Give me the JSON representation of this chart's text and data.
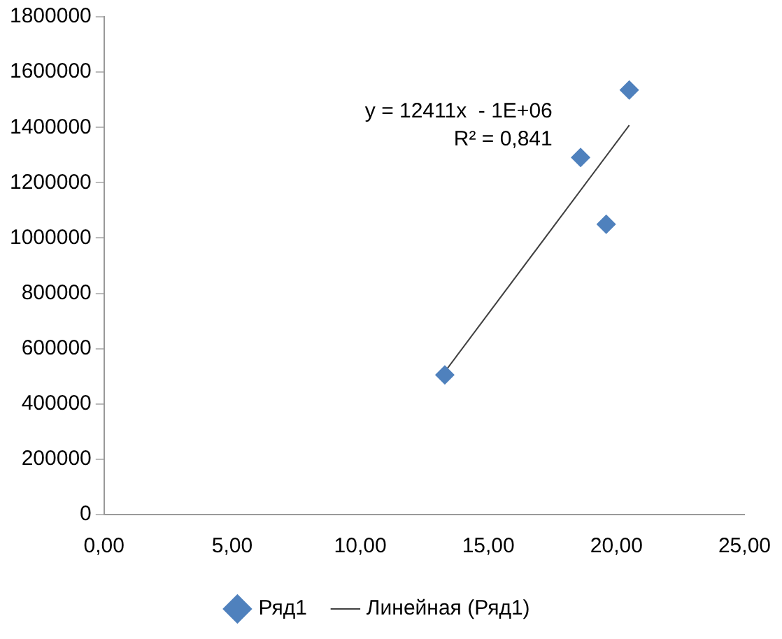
{
  "chart_data": {
    "type": "scatter",
    "marker": "diamond",
    "legend": "bottom",
    "grid": false,
    "xlim": [
      0,
      25
    ],
    "xticks": [
      {
        "value": 0,
        "label": "0,00"
      },
      {
        "value": 5,
        "label": "5,00"
      },
      {
        "value": 10,
        "label": "10,00"
      },
      {
        "value": 15,
        "label": "15,00"
      },
      {
        "value": 20,
        "label": "20,00"
      },
      {
        "value": 25,
        "label": "25,00"
      }
    ],
    "ylim": [
      0,
      1800000
    ],
    "yticks": [
      0,
      200000,
      400000,
      600000,
      800000,
      1000000,
      1200000,
      1400000,
      1600000,
      1800000
    ],
    "series": [
      {
        "name": "Ряд1",
        "color": "#4f81bd",
        "x": [
          13.3,
          18.6,
          19.6,
          20.5
        ],
        "values": [
          505000,
          1291000,
          1050000,
          1535000
        ]
      },
      {
        "name": "Линейная (Ряд1)",
        "type": "line",
        "color": "#404040",
        "marker": "none",
        "x": [
          13.3,
          20.5
        ],
        "values": [
          516000,
          1408000
        ]
      }
    ],
    "annotations": [
      "y = 12411x  - 1E+06",
      "R² = 0,841"
    ]
  }
}
